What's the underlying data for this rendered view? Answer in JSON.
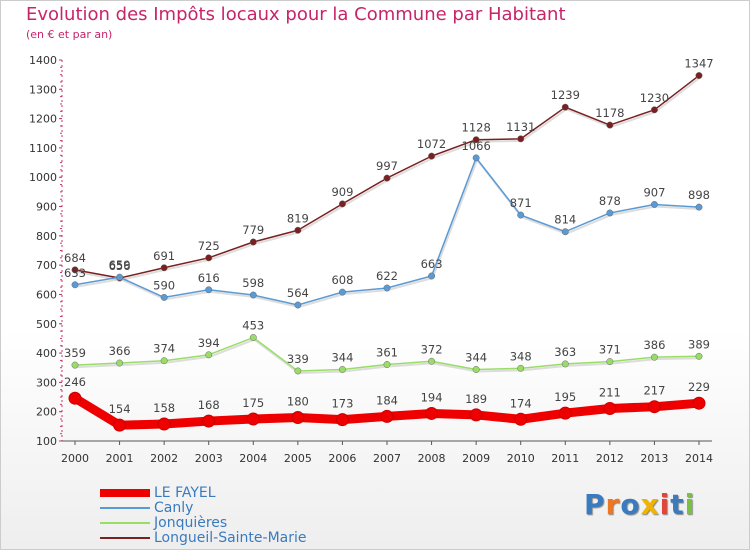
{
  "title": "Evolution des Impôts locaux pour la Commune par Habitant",
  "subtitle": "(en € et par an)",
  "logo_text": "Proxiti",
  "chart_data": {
    "type": "line",
    "title": "Evolution des Impôts locaux pour la Commune par Habitant",
    "subtitle": "(en € et par an)",
    "x": [
      "2000",
      "2001",
      "2002",
      "2003",
      "2004",
      "2005",
      "2006",
      "2007",
      "2008",
      "2009",
      "2010",
      "2011",
      "2012",
      "2013",
      "2014"
    ],
    "ylim": [
      100,
      1400
    ],
    "yticks": [
      100,
      200,
      300,
      400,
      500,
      600,
      700,
      800,
      900,
      1000,
      1100,
      1200,
      1300,
      1400
    ],
    "grid": false,
    "legend_placement": "bottom-left",
    "series": [
      {
        "name": "LE FAYEL",
        "color": "#ee0000",
        "values": [
          246,
          154,
          158,
          168,
          175,
          180,
          173,
          184,
          194,
          189,
          174,
          195,
          211,
          217,
          229
        ]
      },
      {
        "name": "Canly",
        "color": "#5b9bd5",
        "values": [
          633,
          659,
          590,
          616,
          598,
          564,
          608,
          622,
          663,
          1066,
          871,
          814,
          878,
          907,
          898
        ]
      },
      {
        "name": "Jonquières",
        "color": "#99dd66",
        "values": [
          359,
          366,
          374,
          394,
          453,
          339,
          344,
          361,
          372,
          344,
          348,
          363,
          371,
          386,
          389
        ]
      },
      {
        "name": "Longueil-Sainte-Marie",
        "color": "#7a2020",
        "values": [
          684,
          656,
          691,
          725,
          779,
          819,
          909,
          997,
          1072,
          1128,
          1131,
          1239,
          1178,
          1230,
          1347
        ]
      }
    ]
  }
}
